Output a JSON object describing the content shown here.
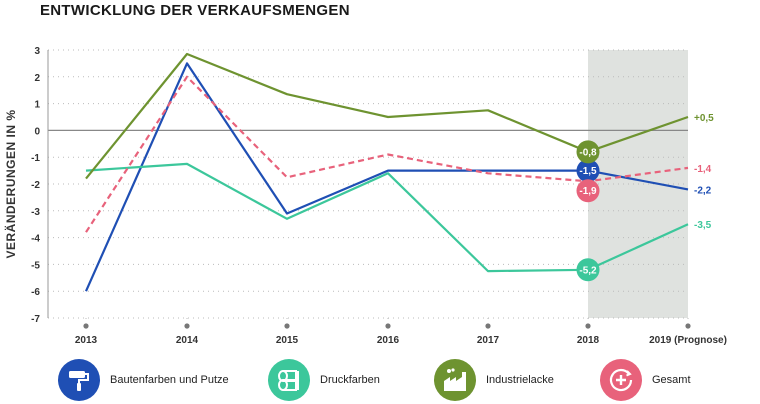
{
  "title": "ENTWICKLUNG DER VERKAUFSMENGEN",
  "chart_data": {
    "type": "line",
    "title": "ENTWICKLUNG DER VERKAUFSMENGEN",
    "ylabel": "VERÄNDERUNGEN IN %",
    "xlabel": "",
    "categories": [
      "2013",
      "2014",
      "2015",
      "2016",
      "2017",
      "2018",
      "2019 (Prognose)"
    ],
    "ylim": [
      -7,
      3
    ],
    "yticks": [
      "3",
      "2",
      "1",
      "0",
      "-1",
      "-2",
      "-3",
      "-4",
      "-5",
      "-6",
      "-7"
    ],
    "forecast_shading": "2018 – 2019",
    "grid": "dotted horizontal",
    "legend_position": "bottom",
    "series": [
      {
        "name": "Bautenfarben und Putze",
        "color": "#1f4fb4",
        "style": "solid",
        "values": [
          -6.0,
          2.5,
          -3.1,
          -1.5,
          -1.5,
          -1.5,
          -2.2
        ],
        "badge_label": "-1,5",
        "end_label": "-2,2"
      },
      {
        "name": "Druckfarben",
        "color": "#3cc79b",
        "style": "solid",
        "values": [
          -1.5,
          -1.25,
          -3.3,
          -1.6,
          -5.25,
          -5.2,
          -3.5
        ],
        "badge_label": "-5,2",
        "end_label": "-3,5"
      },
      {
        "name": "Industrielacke",
        "color": "#6e9330",
        "style": "solid",
        "values": [
          -1.8,
          2.85,
          1.35,
          0.5,
          0.75,
          -0.8,
          0.5
        ],
        "badge_label": "-0,8",
        "end_label": "+0,5"
      },
      {
        "name": "Gesamt",
        "color": "#e8627b",
        "style": "dashed",
        "values": [
          -3.8,
          2.0,
          -1.75,
          -0.9,
          -1.6,
          -1.9,
          -1.4
        ],
        "badge_label": "-1,9",
        "end_label": "-1,4"
      }
    ]
  },
  "legend": [
    {
      "label": "Bautenfarben und Putze",
      "color": "#1f4fb4",
      "icon": "paint-roller-icon"
    },
    {
      "label": "Druckfarben",
      "color": "#3cc79b",
      "icon": "printing-rollers-icon"
    },
    {
      "label": "Industrielacke",
      "color": "#6e9330",
      "icon": "factory-icon"
    },
    {
      "label": "Gesamt",
      "color": "#e8627b",
      "icon": "plus-circle-icon"
    }
  ]
}
